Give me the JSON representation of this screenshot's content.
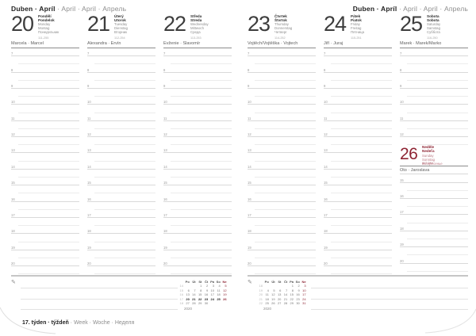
{
  "accent_color": "#8e2433",
  "icons": {
    "pencil": "✎"
  },
  "month_header": {
    "bold": "Duben · Apríl",
    "light": " · April · April · Апрель"
  },
  "week_footer": {
    "bold": "17. týden · týždeň",
    "light": " · Week · Woche · Неделя"
  },
  "days": [
    {
      "page": "left",
      "num": "20",
      "local": [
        "Pondělí",
        "Pondelok"
      ],
      "intl": [
        "Monday",
        "Montag",
        "Понедельник"
      ],
      "doy": "111-255",
      "nameday": "Marcela · Marcel",
      "hours": [
        7,
        8,
        9,
        10,
        11,
        12,
        13,
        14,
        15,
        16,
        17,
        18,
        19,
        20
      ]
    },
    {
      "page": "left",
      "num": "21",
      "local": [
        "Úterý",
        "Utorok"
      ],
      "intl": [
        "Tuesday",
        "Dienstag",
        "Вторник"
      ],
      "doy": "112-254",
      "nameday": "Alexandra · Ervín",
      "hours": [
        7,
        8,
        9,
        10,
        11,
        12,
        13,
        14,
        15,
        16,
        17,
        18,
        19,
        20
      ]
    },
    {
      "page": "left",
      "num": "22",
      "local": [
        "Středa",
        "Streda"
      ],
      "intl": [
        "Wednesday",
        "Mittwoch",
        "Среда"
      ],
      "doy": "113-253",
      "nameday": "Evženie · Slavomír",
      "hours": [
        7,
        8,
        9,
        10,
        11,
        12,
        13,
        14,
        15,
        16,
        17,
        18,
        19,
        20
      ]
    },
    {
      "page": "right",
      "num": "23",
      "local": [
        "Čtvrtek",
        "Štvrtok"
      ],
      "intl": [
        "Thursday",
        "Donnerstag",
        "Четверг"
      ],
      "doy": "114-252",
      "nameday": "Vojtěch/Vojtěška · Vojtech",
      "hours": [
        7,
        8,
        9,
        10,
        11,
        12,
        13,
        14,
        15,
        16,
        17,
        18,
        19,
        20
      ]
    },
    {
      "page": "right",
      "num": "24",
      "local": [
        "Pátek",
        "Piatok"
      ],
      "intl": [
        "Friday",
        "Freitag",
        "Пятница"
      ],
      "doy": "115-251",
      "nameday": "Jiří · Juraj",
      "hours": [
        7,
        8,
        9,
        10,
        11,
        12,
        13,
        14,
        15,
        16,
        17,
        18,
        19,
        20
      ]
    },
    {
      "page": "right",
      "num": "25",
      "local": [
        "Sobota",
        "Sobota"
      ],
      "intl": [
        "Saturday",
        "Samstag",
        "Суббота"
      ],
      "doy": "116-250",
      "nameday": "Marek · Marek/Marko",
      "hours": [
        7,
        8,
        9,
        10,
        11,
        12
      ],
      "sunday": {
        "num": "26",
        "local": [
          "Neděle",
          "Nedeľa"
        ],
        "intl": [
          "Sunday",
          "Sonntag",
          "Воскресенье"
        ],
        "doy": "117-249",
        "nameday": "Oto · Jaroslava",
        "hours": [
          15,
          16,
          17,
          18,
          19,
          20
        ]
      }
    }
  ],
  "minicals": [
    {
      "page": "left",
      "year": "2020",
      "dows": [
        "Po",
        "Út",
        "St",
        "Čt",
        "Pá",
        "So",
        "Ne"
      ],
      "weeks": [
        "14",
        "15",
        "16",
        "17",
        "18"
      ],
      "rows": [
        [
          "",
          "",
          "1",
          "2",
          "3",
          "4",
          "5"
        ],
        [
          "6",
          "7",
          "8",
          "9",
          "10",
          "11",
          "12"
        ],
        [
          "13",
          "14",
          "15",
          "16",
          "17",
          "18",
          "19"
        ],
        [
          "20",
          "21",
          "22",
          "23",
          "24",
          "25",
          "26"
        ],
        [
          "27",
          "28",
          "29",
          "30",
          "",
          "",
          ""
        ]
      ],
      "current_row": 3
    },
    {
      "page": "right",
      "year": "2020",
      "dows": [
        "Po",
        "Út",
        "St",
        "Čt",
        "Pá",
        "So",
        "Ne"
      ],
      "weeks": [
        "18",
        "19",
        "20",
        "21",
        "22"
      ],
      "rows": [
        [
          "",
          "",
          "",
          "",
          "1",
          "2",
          "3"
        ],
        [
          "4",
          "5",
          "6",
          "7",
          "8",
          "9",
          "10"
        ],
        [
          "11",
          "12",
          "13",
          "14",
          "15",
          "16",
          "17"
        ],
        [
          "18",
          "19",
          "20",
          "21",
          "22",
          "23",
          "24"
        ],
        [
          "25",
          "26",
          "27",
          "28",
          "29",
          "30",
          "31"
        ]
      ],
      "current_row": -1
    }
  ]
}
